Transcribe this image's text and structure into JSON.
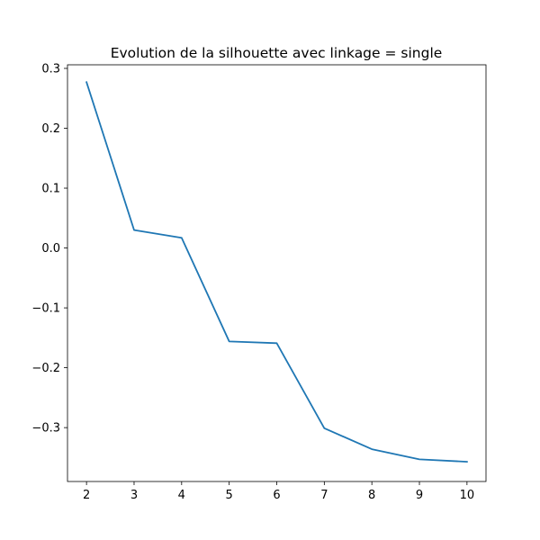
{
  "chart_data": {
    "type": "line",
    "title": "Evolution de la silhouette avec linkage = single",
    "xlabel": "",
    "ylabel": "",
    "x": [
      2,
      3,
      4,
      5,
      6,
      7,
      8,
      9,
      10
    ],
    "series": [
      {
        "color": "#1f77b4",
        "values": [
          0.277,
          0.03,
          0.017,
          -0.156,
          -0.159,
          -0.301,
          -0.336,
          -0.353,
          -0.357
        ]
      }
    ],
    "xlim": [
      1.6,
      10.4
    ],
    "ylim": [
      -0.39,
      0.306
    ],
    "xticks": [
      2,
      3,
      4,
      5,
      6,
      7,
      8,
      9,
      10
    ],
    "xtick_labels": [
      "2",
      "3",
      "4",
      "5",
      "6",
      "7",
      "8",
      "9",
      "10"
    ],
    "yticks": [
      0.3,
      0.2,
      0.1,
      0.0,
      -0.1,
      -0.2,
      -0.3
    ],
    "ytick_labels": [
      "0.3",
      "0.2",
      "0.1",
      "0.0",
      "−0.1",
      "−0.2",
      "−0.3"
    ],
    "grid": false,
    "legend": "none"
  }
}
